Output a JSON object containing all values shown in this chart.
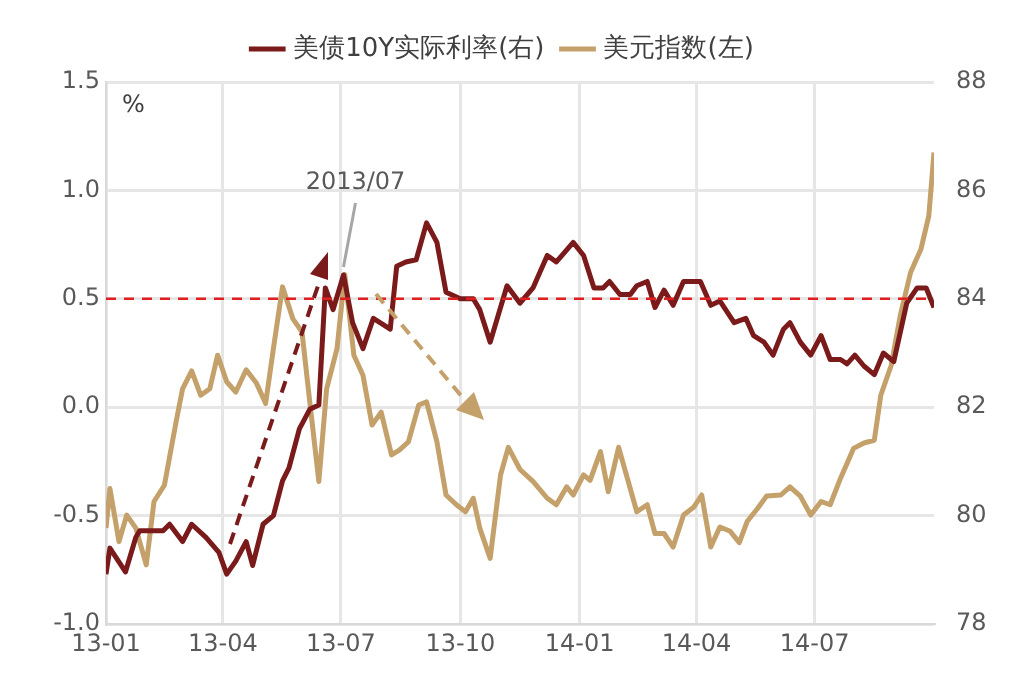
{
  "chart_data": {
    "type": "line",
    "ylabel": "%",
    "legend": "top",
    "grid": true,
    "marker": "none",
    "line_style": "solid",
    "xlim": [
      "2013-01-01",
      "2014-10-01"
    ],
    "xticks": [
      {
        "value": "2013-01",
        "label": "13-01"
      },
      {
        "value": "2013-04",
        "label": "13-04"
      },
      {
        "value": "2013-07",
        "label": "13-07"
      },
      {
        "value": "2013-10",
        "label": "13-10"
      },
      {
        "value": "2014-01",
        "label": "14-01"
      },
      {
        "value": "2014-04",
        "label": "14-04"
      },
      {
        "value": "2014-07",
        "label": "14-07"
      }
    ],
    "ylim": [
      -1,
      1.5
    ],
    "yticks": [
      {
        "value": -1,
        "label": "-1.0"
      },
      -0.5,
      {
        "value": 0,
        "label": "0.0"
      },
      0.5,
      {
        "value": 1,
        "label": "1.0"
      },
      1.5
    ],
    "y2lim": [
      78,
      88
    ],
    "y2ticks": [
      78,
      80,
      82,
      84,
      86,
      88
    ],
    "series": [
      {
        "name": "美债10Y实际利率(右)",
        "color": "#7b1a1a",
        "axis": "y",
        "x": [
          "2013-01-01",
          "2013-01-04",
          "2013-01-16",
          "2013-01-24",
          "2013-01-27",
          "2013-02-14",
          "2013-02-19",
          "2013-03-01",
          "2013-03-08",
          "2013-03-19",
          "2013-03-29",
          "2013-04-04",
          "2013-04-11",
          "2013-04-19",
          "2013-04-24",
          "2013-05-02",
          "2013-05-10",
          "2013-05-17",
          "2013-05-22",
          "2013-05-30",
          "2013-06-07",
          "2013-06-14",
          "2013-06-19",
          "2013-06-25",
          "2013-07-03",
          "2013-07-10",
          "2013-07-18",
          "2013-07-26",
          "2013-08-08",
          "2013-08-13",
          "2013-08-20",
          "2013-08-28",
          "2013-09-05",
          "2013-09-13",
          "2013-09-20",
          "2013-10-01",
          "2013-10-11",
          "2013-10-16",
          "2013-10-24",
          "2013-11-06",
          "2013-11-16",
          "2013-11-26",
          "2013-12-07",
          "2013-12-14",
          "2013-12-27",
          "2014-01-04",
          "2014-01-12",
          "2014-01-19",
          "2014-01-24",
          "2014-02-01",
          "2014-02-09",
          "2014-02-14",
          "2014-02-22",
          "2014-02-28",
          "2014-03-07",
          "2014-03-14",
          "2014-03-22",
          "2014-04-04",
          "2014-04-12",
          "2014-04-19",
          "2014-04-30",
          "2014-05-09",
          "2014-05-15",
          "2014-05-23",
          "2014-05-30",
          "2014-06-07",
          "2014-06-12",
          "2014-06-20",
          "2014-06-28",
          "2014-07-06",
          "2014-07-13",
          "2014-07-21",
          "2014-07-26",
          "2014-08-01",
          "2014-08-08",
          "2014-08-16",
          "2014-08-23",
          "2014-08-31",
          "2014-09-10",
          "2014-09-18",
          "2014-09-25",
          "2014-10-01"
        ],
        "values": [
          -0.77,
          -0.65,
          -0.76,
          -0.6,
          -0.57,
          -0.57,
          -0.54,
          -0.62,
          -0.54,
          -0.6,
          -0.67,
          -0.77,
          -0.71,
          -0.62,
          -0.73,
          -0.54,
          -0.5,
          -0.34,
          -0.28,
          -0.1,
          -0.01,
          0.01,
          0.55,
          0.45,
          0.61,
          0.39,
          0.27,
          0.41,
          0.36,
          0.65,
          0.67,
          0.68,
          0.85,
          0.76,
          0.53,
          0.5,
          0.5,
          0.45,
          0.3,
          0.56,
          0.48,
          0.55,
          0.7,
          0.67,
          0.76,
          0.7,
          0.55,
          0.55,
          0.58,
          0.52,
          0.52,
          0.56,
          0.58,
          0.46,
          0.54,
          0.47,
          0.58,
          0.58,
          0.47,
          0.49,
          0.39,
          0.41,
          0.33,
          0.3,
          0.24,
          0.36,
          0.39,
          0.3,
          0.24,
          0.33,
          0.22,
          0.22,
          0.2,
          0.24,
          0.19,
          0.15,
          0.25,
          0.21,
          0.48,
          0.55,
          0.55,
          0.46
        ]
      },
      {
        "name": "美元指数(左)",
        "color": "#c4a16a",
        "axis": "y2",
        "x": [
          "2013-01-01",
          "2013-01-04",
          "2013-01-11",
          "2013-01-17",
          "2013-01-24",
          "2013-02-01",
          "2013-02-07",
          "2013-02-15",
          "2013-02-24",
          "2013-03-01",
          "2013-03-08",
          "2013-03-15",
          "2013-03-22",
          "2013-03-28",
          "2013-04-04",
          "2013-04-11",
          "2013-04-19",
          "2013-04-27",
          "2013-05-04",
          "2013-05-10",
          "2013-05-17",
          "2013-05-25",
          "2013-06-01",
          "2013-06-07",
          "2013-06-14",
          "2013-06-20",
          "2013-06-28",
          "2013-07-04",
          "2013-07-11",
          "2013-07-18",
          "2013-07-25",
          "2013-08-01",
          "2013-08-09",
          "2013-08-15",
          "2013-08-22",
          "2013-08-30",
          "2013-09-05",
          "2013-09-13",
          "2013-09-20",
          "2013-09-28",
          "2013-10-05",
          "2013-10-11",
          "2013-10-16",
          "2013-10-24",
          "2013-11-01",
          "2013-11-07",
          "2013-11-16",
          "2013-11-26",
          "2013-12-07",
          "2013-12-14",
          "2013-12-22",
          "2013-12-27",
          "2014-01-04",
          "2014-01-09",
          "2014-01-17",
          "2014-01-23",
          "2014-01-31",
          "2014-02-06",
          "2014-02-14",
          "2014-02-22",
          "2014-02-28",
          "2014-03-07",
          "2014-03-14",
          "2014-03-22",
          "2014-03-30",
          "2014-04-05",
          "2014-04-12",
          "2014-04-19",
          "2014-04-27",
          "2014-05-04",
          "2014-05-10",
          "2014-05-18",
          "2014-05-25",
          "2014-06-05",
          "2014-06-12",
          "2014-06-20",
          "2014-06-28",
          "2014-07-06",
          "2014-07-13",
          "2014-07-21",
          "2014-07-31",
          "2014-08-08",
          "2014-08-16",
          "2014-08-21",
          "2014-08-29",
          "2014-09-05",
          "2014-09-13",
          "2014-09-21",
          "2014-09-27",
          "2014-10-01"
        ],
        "values": [
          79.77,
          80.5,
          79.52,
          80.01,
          79.77,
          79.09,
          80.26,
          80.56,
          81.73,
          82.34,
          82.67,
          82.22,
          82.34,
          82.96,
          82.47,
          82.28,
          82.69,
          82.44,
          82.07,
          83.08,
          84.22,
          83.63,
          83.39,
          82.1,
          80.63,
          82.34,
          83.08,
          84.45,
          82.96,
          82.59,
          81.67,
          81.91,
          81.12,
          81.21,
          81.36,
          82.04,
          82.1,
          81.36,
          80.38,
          80.2,
          80.07,
          80.32,
          79.77,
          79.21,
          80.75,
          81.26,
          80.85,
          80.63,
          80.32,
          80.2,
          80.53,
          80.38,
          80.75,
          80.65,
          81.18,
          80.44,
          81.26,
          80.75,
          80.07,
          80.2,
          79.67,
          79.67,
          79.42,
          80.01,
          80.16,
          80.38,
          79.42,
          79.79,
          79.71,
          79.5,
          79.89,
          80.13,
          80.36,
          80.38,
          80.53,
          80.36,
          80.01,
          80.26,
          80.2,
          80.69,
          81.24,
          81.34,
          81.39,
          82.22,
          82.77,
          83.69,
          84.49,
          84.92,
          85.53,
          86.7
        ]
      }
    ],
    "ref_lines": [
      {
        "axis": "y",
        "value": 0.5,
        "color": "#e02020",
        "line_style": "dashed"
      }
    ],
    "annotations": [
      {
        "text": "2013/07",
        "x": "2013-07-03",
        "y": 0.61
      }
    ]
  }
}
